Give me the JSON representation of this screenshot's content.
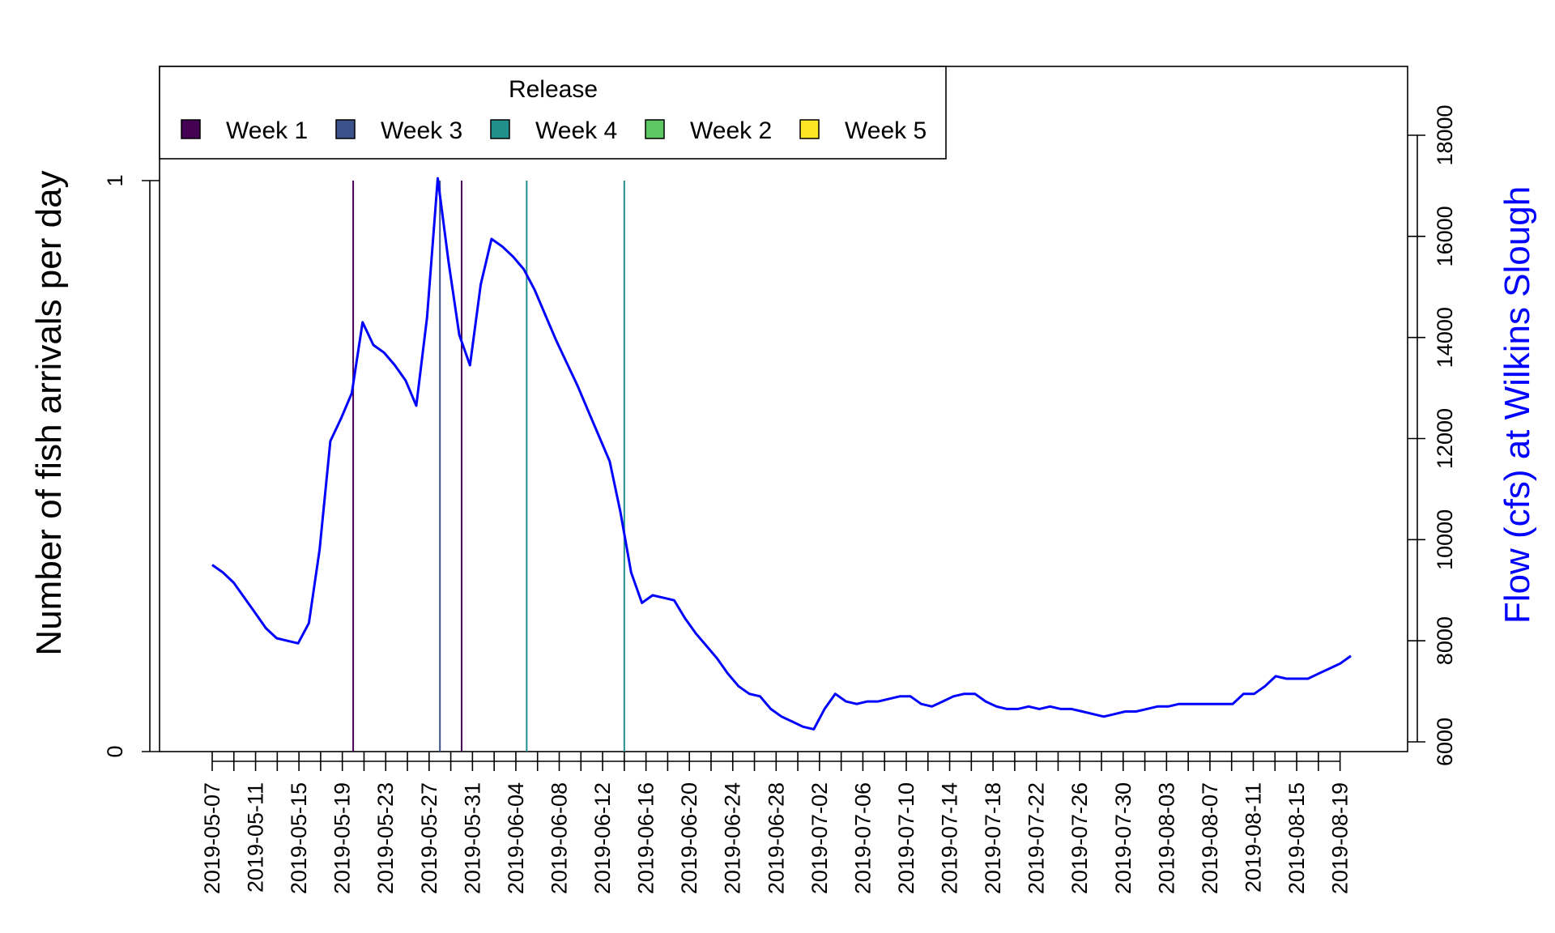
{
  "chart_data": {
    "type": "line",
    "ylabel_left": "Number of fish arrivals per day",
    "ylabel_right": "Flow (cfs) at Wilkins Slough",
    "yticks_left": [
      "0",
      "1"
    ],
    "ylim_left": [
      0,
      1
    ],
    "yticks_right": [
      "6000",
      "8000",
      "10000",
      "12000",
      "14000",
      "16000",
      "18000"
    ],
    "ylim_right": [
      6000,
      17200
    ],
    "x_start": "2019-05-07",
    "x_end": "2019-08-20",
    "xtick_labels": [
      "2019-05-07",
      "2019-05-11",
      "2019-05-15",
      "2019-05-19",
      "2019-05-23",
      "2019-05-27",
      "2019-05-31",
      "2019-06-04",
      "2019-06-08",
      "2019-06-12",
      "2019-06-16",
      "2019-06-20",
      "2019-06-24",
      "2019-06-28",
      "2019-07-02",
      "2019-07-06",
      "2019-07-10",
      "2019-07-14",
      "2019-07-18",
      "2019-07-22",
      "2019-07-26",
      "2019-07-30",
      "2019-08-03",
      "2019-08-07",
      "2019-08-11",
      "2019-08-15",
      "2019-08-19"
    ],
    "legend": {
      "title": "Release",
      "entries": [
        {
          "label": "Week 1",
          "color": "#440154"
        },
        {
          "label": "Week 3",
          "color": "#3B528B"
        },
        {
          "label": "Week 4",
          "color": "#21908C"
        },
        {
          "label": "Week 2",
          "color": "#5DC863"
        },
        {
          "label": "Week 5",
          "color": "#FDE725"
        }
      ],
      "position": "top-left"
    },
    "arrivals": [
      {
        "date": "2019-05-20",
        "count": 1,
        "release": "Week 1",
        "color": "#440154"
      },
      {
        "date": "2019-05-28",
        "count": 1,
        "release": "Week 3",
        "color": "#3B528B"
      },
      {
        "date": "2019-05-30",
        "count": 1,
        "release": "Week 1",
        "color": "#440154"
      },
      {
        "date": "2019-06-05",
        "count": 1,
        "release": "Week 4",
        "color": "#21908C"
      },
      {
        "date": "2019-06-14",
        "count": 1,
        "release": "Week 4",
        "color": "#21908C"
      }
    ],
    "flow_series": {
      "name": "Flow",
      "color": "#0000FF",
      "values": [
        9500,
        9350,
        9150,
        8850,
        8550,
        8250,
        8050,
        8000,
        7950,
        8350,
        9800,
        11950,
        12400,
        12900,
        14300,
        13850,
        13700,
        13450,
        13150,
        12650,
        14400,
        17150,
        15500,
        14050,
        13450,
        15050,
        15950,
        15800,
        15600,
        15350,
        14950,
        14450,
        13950,
        13500,
        13050,
        12550,
        12050,
        11550,
        10550,
        9350,
        8750,
        8900,
        8850,
        8800,
        8450,
        8150,
        7900,
        7650,
        7350,
        7100,
        6950,
        6900,
        6650,
        6500,
        6400,
        6300,
        6250,
        6650,
        6950,
        6800,
        6750,
        6800,
        6800,
        6850,
        6900,
        6900,
        6750,
        6700,
        6800,
        6900,
        6950,
        6950,
        6800,
        6700,
        6650,
        6650,
        6700,
        6650,
        6700,
        6650,
        6650,
        6600,
        6550,
        6500,
        6550,
        6600,
        6600,
        6650,
        6700,
        6700,
        6750,
        6750,
        6750,
        6750,
        6750,
        6750,
        6950,
        6950,
        7100,
        7300,
        7250,
        7250,
        7250,
        7350,
        7450,
        7550,
        7700
      ]
    }
  }
}
